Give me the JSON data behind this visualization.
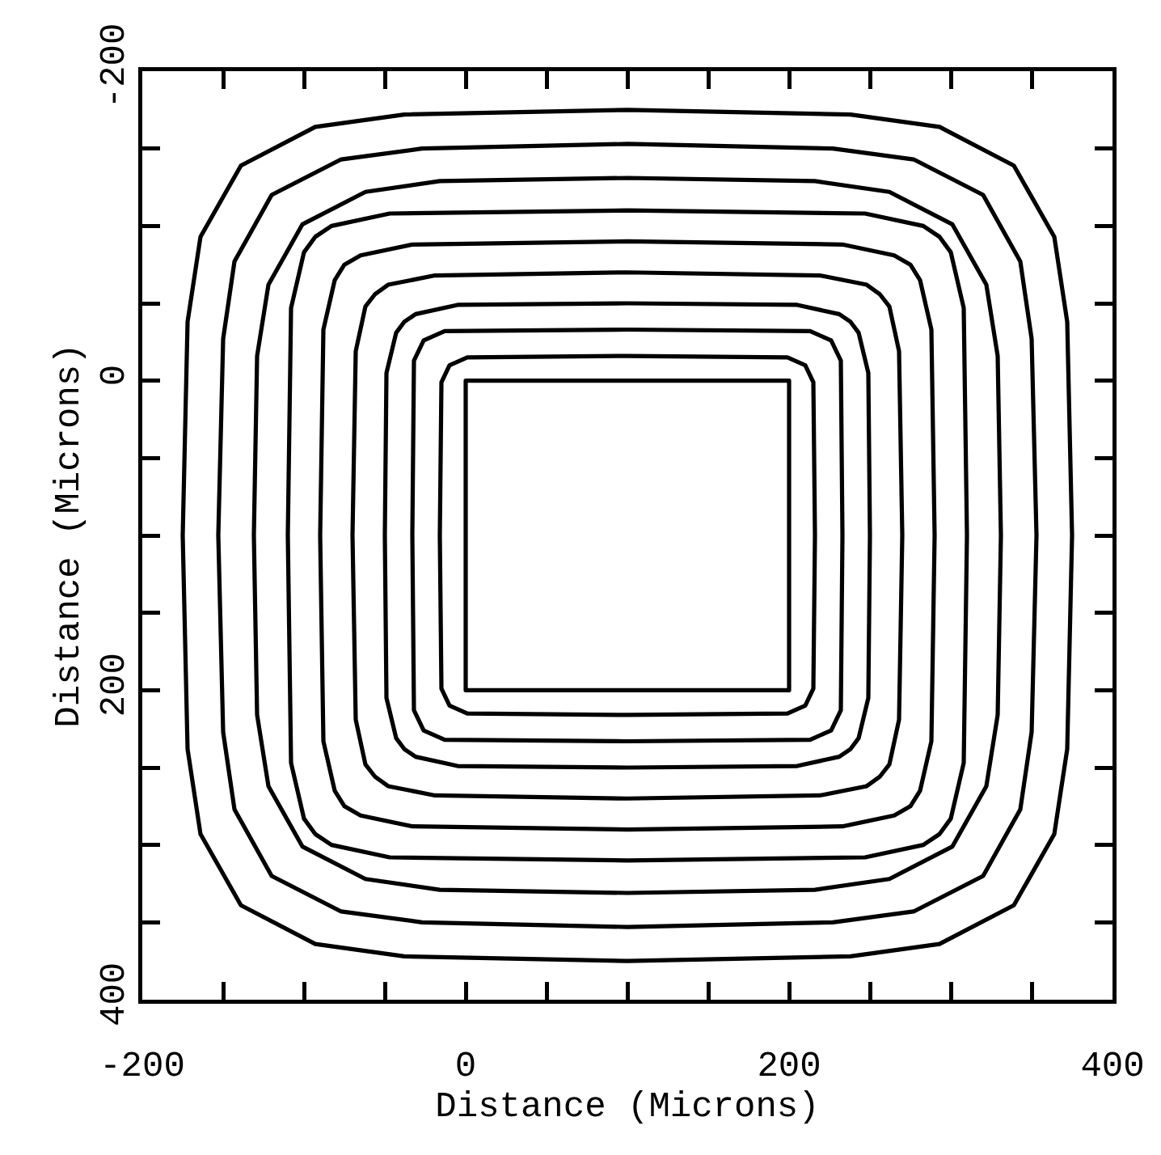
{
  "chart_data": {
    "type": "line",
    "xlabel": "Distance (Microns)",
    "ylabel": "Distance (Microns)",
    "xlim": [
      -200,
      400
    ],
    "ylim": [
      400,
      -200
    ],
    "xticks": [
      -200,
      {
        "value": -150,
        "label": null
      },
      {
        "value": -100,
        "label": null
      },
      {
        "value": -50,
        "label": null
      },
      0,
      {
        "value": 50,
        "label": null
      },
      {
        "value": 100,
        "label": null
      },
      {
        "value": 150,
        "label": null
      },
      200,
      {
        "value": 250,
        "label": null
      },
      {
        "value": 300,
        "label": null
      },
      {
        "value": 350,
        "label": null
      },
      400
    ],
    "yticks": [
      -200,
      {
        "value": -150,
        "label": null
      },
      {
        "value": -100,
        "label": null
      },
      {
        "value": -50,
        "label": null
      },
      0,
      {
        "value": 50,
        "label": null
      },
      {
        "value": 100,
        "label": null
      },
      {
        "value": 150,
        "label": null
      },
      200,
      {
        "value": 250,
        "label": null
      },
      {
        "value": 300,
        "label": null
      },
      {
        "value": 350,
        "label": null
      },
      400
    ],
    "grid": false
  }
}
